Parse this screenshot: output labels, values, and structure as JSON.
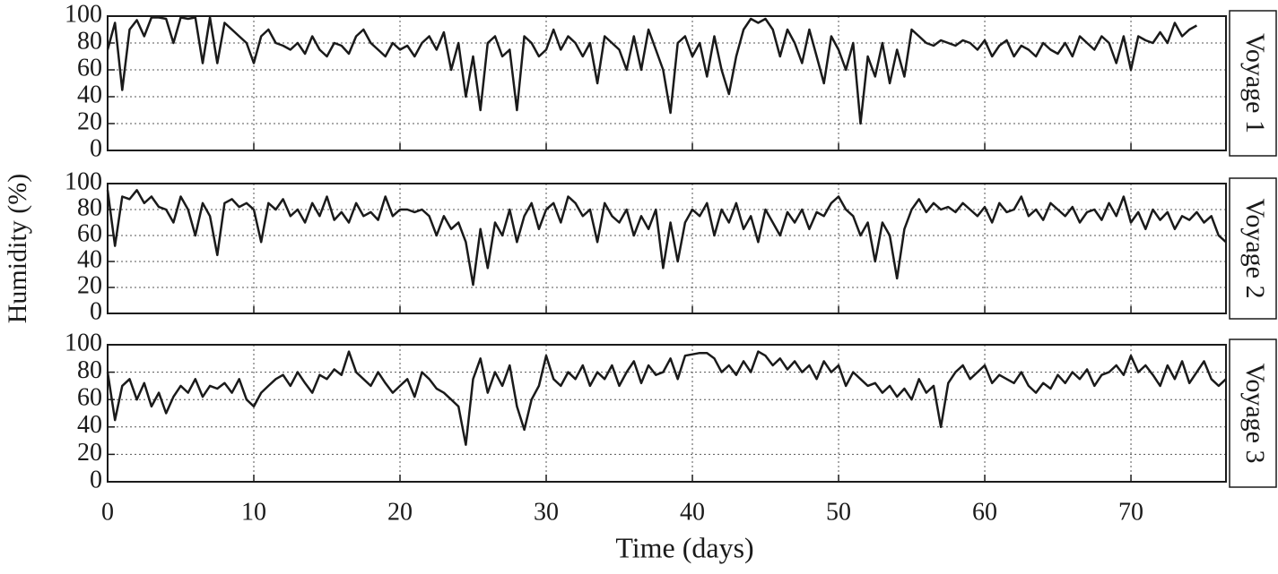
{
  "chart_data": [
    {
      "type": "line",
      "title": "Voyage 1",
      "x": [
        0,
        0.5,
        1,
        1.5,
        2,
        2.5,
        3,
        3.5,
        4,
        4.5,
        5,
        5.5,
        6,
        6.5,
        7,
        7.5,
        8,
        8.5,
        9,
        9.5,
        10,
        10.5,
        11,
        11.5,
        12,
        12.5,
        13,
        13.5,
        14,
        14.5,
        15,
        15.5,
        16,
        16.5,
        17,
        17.5,
        18,
        18.5,
        19,
        19.5,
        20,
        20.5,
        21,
        21.5,
        22,
        22.5,
        23,
        23.5,
        24,
        24.5,
        25,
        25.5,
        26,
        26.5,
        27,
        27.5,
        28,
        28.5,
        29,
        29.5,
        30,
        30.5,
        31,
        31.5,
        32,
        32.5,
        33,
        33.5,
        34,
        34.5,
        35,
        35.5,
        36,
        36.5,
        37,
        37.5,
        38,
        38.5,
        39,
        39.5,
        40,
        40.5,
        41,
        41.5,
        42,
        42.5,
        43,
        43.5,
        44,
        44.5,
        45,
        45.5,
        46,
        46.5,
        47,
        47.5,
        48,
        48.5,
        49,
        49.5,
        50,
        50.5,
        51,
        51.5,
        52,
        52.5,
        53,
        53.5,
        54,
        54.5,
        55,
        55.5,
        56,
        56.5,
        57,
        57.5,
        58,
        58.5,
        59,
        59.5,
        60,
        60.5,
        61,
        61.5,
        62,
        62.5,
        63,
        63.5,
        64,
        64.5,
        65,
        65.5,
        66,
        66.5,
        67,
        67.5,
        68,
        68.5,
        69,
        69.5,
        70,
        70.5,
        71,
        71.5,
        72,
        72.5,
        73,
        73.5,
        74,
        74.5
      ],
      "values": [
        75,
        95,
        45,
        90,
        97,
        85,
        99,
        99,
        98,
        80,
        99,
        98,
        99,
        65,
        99,
        65,
        95,
        90,
        85,
        80,
        65,
        85,
        90,
        80,
        78,
        75,
        80,
        72,
        85,
        75,
        70,
        80,
        78,
        72,
        85,
        90,
        80,
        75,
        70,
        80,
        75,
        78,
        70,
        80,
        85,
        75,
        88,
        60,
        80,
        40,
        70,
        30,
        80,
        85,
        70,
        75,
        30,
        85,
        80,
        70,
        75,
        90,
        75,
        85,
        80,
        70,
        80,
        50,
        85,
        80,
        75,
        60,
        85,
        60,
        90,
        75,
        60,
        28,
        80,
        85,
        70,
        80,
        55,
        85,
        60,
        42,
        70,
        90,
        98,
        95,
        98,
        90,
        70,
        90,
        80,
        65,
        90,
        70,
        50,
        85,
        75,
        60,
        80,
        20,
        70,
        55,
        80,
        50,
        75,
        55,
        90,
        85,
        80,
        78,
        82,
        80,
        78,
        82,
        80,
        75,
        82,
        70,
        78,
        82,
        70,
        78,
        75,
        70,
        80,
        75,
        72,
        80,
        70,
        85,
        80,
        75,
        85,
        80,
        65,
        85,
        60,
        85,
        82,
        80,
        88,
        80,
        95,
        85,
        90,
        93
      ],
      "color": "#1a1a1a",
      "xlim": [
        0,
        76.5
      ],
      "ylim": [
        0,
        100
      ],
      "xticks": [
        0,
        10,
        20,
        30,
        40,
        50,
        60,
        70
      ],
      "yticks": [
        0,
        20,
        40,
        60,
        80,
        100
      ],
      "grid": true
    },
    {
      "type": "line",
      "title": "Voyage 2",
      "ylabel": "Humidity (%)",
      "x": [
        0,
        0.5,
        1,
        1.5,
        2,
        2.5,
        3,
        3.5,
        4,
        4.5,
        5,
        5.5,
        6,
        6.5,
        7,
        7.5,
        8,
        8.5,
        9,
        9.5,
        10,
        10.5,
        11,
        11.5,
        12,
        12.5,
        13,
        13.5,
        14,
        14.5,
        15,
        15.5,
        16,
        16.5,
        17,
        17.5,
        18,
        18.5,
        19,
        19.5,
        20,
        20.5,
        21,
        21.5,
        22,
        22.5,
        23,
        23.5,
        24,
        24.5,
        25,
        25.5,
        26,
        26.5,
        27,
        27.5,
        28,
        28.5,
        29,
        29.5,
        30,
        30.5,
        31,
        31.5,
        32,
        32.5,
        33,
        33.5,
        34,
        34.5,
        35,
        35.5,
        36,
        36.5,
        37,
        37.5,
        38,
        38.5,
        39,
        39.5,
        40,
        40.5,
        41,
        41.5,
        42,
        42.5,
        43,
        43.5,
        44,
        44.5,
        45,
        45.5,
        46,
        46.5,
        47,
        47.5,
        48,
        48.5,
        49,
        49.5,
        50,
        50.5,
        51,
        51.5,
        52,
        52.5,
        53,
        53.5,
        54,
        54.5,
        55,
        55.5,
        56,
        56.5,
        57,
        57.5,
        58,
        58.5,
        59,
        59.5,
        60,
        60.5,
        61,
        61.5,
        62,
        62.5,
        63,
        63.5,
        64,
        64.5,
        65,
        65.5,
        66,
        66.5,
        67,
        67.5,
        68,
        68.5,
        69,
        69.5,
        70,
        70.5,
        71,
        71.5,
        72,
        72.5,
        73,
        73.5,
        74,
        74.5,
        75,
        75.5,
        76,
        76.5
      ],
      "values": [
        95,
        52,
        90,
        88,
        95,
        85,
        90,
        82,
        80,
        70,
        90,
        80,
        60,
        85,
        75,
        45,
        85,
        88,
        82,
        85,
        80,
        55,
        85,
        80,
        88,
        75,
        80,
        70,
        85,
        75,
        90,
        72,
        78,
        70,
        85,
        75,
        78,
        72,
        90,
        75,
        80,
        80,
        78,
        80,
        75,
        60,
        75,
        65,
        70,
        55,
        22,
        65,
        35,
        70,
        60,
        80,
        55,
        75,
        85,
        65,
        80,
        85,
        70,
        90,
        85,
        75,
        80,
        55,
        85,
        75,
        70,
        80,
        60,
        75,
        65,
        80,
        35,
        70,
        40,
        70,
        80,
        75,
        85,
        60,
        80,
        70,
        85,
        65,
        75,
        55,
        80,
        70,
        60,
        78,
        70,
        80,
        65,
        78,
        75,
        85,
        90,
        80,
        75,
        60,
        70,
        40,
        70,
        60,
        27,
        65,
        80,
        88,
        78,
        85,
        80,
        82,
        78,
        85,
        80,
        75,
        82,
        70,
        85,
        78,
        80,
        90,
        75,
        80,
        72,
        85,
        80,
        75,
        82,
        70,
        78,
        80,
        72,
        85,
        75,
        90,
        70,
        78,
        65,
        80,
        72,
        78,
        65,
        75,
        72,
        78,
        70,
        75,
        60,
        55
      ],
      "color": "#1a1a1a",
      "xlim": [
        0,
        76.5
      ],
      "ylim": [
        0,
        100
      ],
      "xticks": [
        0,
        10,
        20,
        30,
        40,
        50,
        60,
        70
      ],
      "yticks": [
        0,
        20,
        40,
        60,
        80,
        100
      ],
      "grid": true
    },
    {
      "type": "line",
      "title": "Voyage 3",
      "xlabel": "Time (days)",
      "x": [
        0,
        0.5,
        1,
        1.5,
        2,
        2.5,
        3,
        3.5,
        4,
        4.5,
        5,
        5.5,
        6,
        6.5,
        7,
        7.5,
        8,
        8.5,
        9,
        9.5,
        10,
        10.5,
        11,
        11.5,
        12,
        12.5,
        13,
        13.5,
        14,
        14.5,
        15,
        15.5,
        16,
        16.5,
        17,
        17.5,
        18,
        18.5,
        19,
        19.5,
        20,
        20.5,
        21,
        21.5,
        22,
        22.5,
        23,
        23.5,
        24,
        24.5,
        25,
        25.5,
        26,
        26.5,
        27,
        27.5,
        28,
        28.5,
        29,
        29.5,
        30,
        30.5,
        31,
        31.5,
        32,
        32.5,
        33,
        33.5,
        34,
        34.5,
        35,
        35.5,
        36,
        36.5,
        37,
        37.5,
        38,
        38.5,
        39,
        39.5,
        40,
        40.5,
        41,
        41.5,
        42,
        42.5,
        43,
        43.5,
        44,
        44.5,
        45,
        45.5,
        46,
        46.5,
        47,
        47.5,
        48,
        48.5,
        49,
        49.5,
        50,
        50.5,
        51,
        51.5,
        52,
        52.5,
        53,
        53.5,
        54,
        54.5,
        55,
        55.5,
        56,
        56.5,
        57,
        57.5,
        58,
        58.5,
        59,
        59.5,
        60,
        60.5,
        61,
        61.5,
        62,
        62.5,
        63,
        63.5,
        64,
        64.5,
        65,
        65.5,
        66,
        66.5,
        67,
        67.5,
        68,
        68.5,
        69,
        69.5,
        70,
        70.5,
        71,
        71.5,
        72,
        72.5,
        73,
        73.5,
        74,
        74.5,
        75,
        75.5,
        76,
        76.5
      ],
      "values": [
        80,
        45,
        70,
        75,
        60,
        72,
        55,
        65,
        50,
        62,
        70,
        65,
        75,
        62,
        70,
        68,
        72,
        65,
        75,
        60,
        55,
        65,
        70,
        75,
        78,
        70,
        80,
        72,
        65,
        78,
        75,
        82,
        78,
        95,
        80,
        75,
        70,
        80,
        72,
        65,
        70,
        75,
        62,
        80,
        75,
        68,
        65,
        60,
        55,
        27,
        75,
        90,
        65,
        80,
        70,
        85,
        55,
        38,
        60,
        70,
        92,
        75,
        70,
        80,
        75,
        85,
        70,
        80,
        75,
        85,
        70,
        80,
        88,
        72,
        85,
        78,
        80,
        90,
        75,
        92,
        93,
        94,
        94,
        90,
        80,
        85,
        78,
        88,
        80,
        95,
        92,
        85,
        90,
        82,
        88,
        80,
        85,
        75,
        88,
        80,
        85,
        70,
        80,
        75,
        70,
        72,
        65,
        70,
        62,
        68,
        60,
        75,
        65,
        70,
        40,
        72,
        80,
        85,
        75,
        80,
        85,
        72,
        78,
        75,
        72,
        80,
        70,
        65,
        72,
        68,
        78,
        72,
        80,
        75,
        82,
        70,
        78,
        80,
        85,
        78,
        92,
        80,
        85,
        78,
        70,
        85,
        75,
        88,
        72,
        80,
        88,
        75,
        70,
        75
      ],
      "color": "#1a1a1a",
      "xlim": [
        0,
        76.5
      ],
      "ylim": [
        0,
        100
      ],
      "xticks": [
        0,
        10,
        20,
        30,
        40,
        50,
        60,
        70
      ],
      "yticks": [
        0,
        20,
        40,
        60,
        80,
        100
      ],
      "grid": true
    }
  ]
}
